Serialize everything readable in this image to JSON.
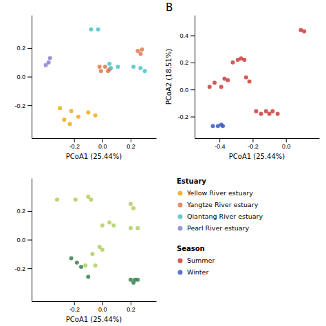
{
  "chart_data": [
    {
      "type": "scatter",
      "x_label": "PCoA1 (25.44%)",
      "annotations": [
        "Estuary"
      ],
      "xlim": [
        -0.5,
        0.38
      ],
      "ylim": [
        -0.43,
        0.43
      ],
      "xticks": [
        -0.2,
        {
          "value": 0.0,
          "label": "0.0"
        },
        0.2
      ],
      "yticks": [
        -0.2,
        {
          "value": 0.0,
          "label": "0.0"
        },
        0.2
      ],
      "series": [
        {
          "name": "Yellow River estuary",
          "color": "#F0A500",
          "x": [
            -0.3,
            -0.22,
            -0.27,
            -0.17,
            -0.23,
            -0.1,
            -0.05
          ],
          "values": [
            -0.22,
            -0.24,
            -0.3,
            -0.28,
            -0.33,
            -0.25,
            -0.27
          ]
        },
        {
          "name": "Yangtze River estuary",
          "color": "#E07040",
          "x": [
            -0.02,
            0.02,
            0.05,
            -0.01,
            0.04,
            0.25,
            0.27,
            0.28
          ],
          "values": [
            0.07,
            0.07,
            0.05,
            0.04,
            0.04,
            0.18,
            0.16,
            0.19
          ]
        },
        {
          "name": "Qiantang River estuary",
          "color": "#40C0C0",
          "x": [
            -0.08,
            -0.03,
            0.05,
            0.06,
            0.11,
            0.22,
            0.27,
            0.3
          ],
          "values": [
            0.33,
            0.33,
            0.09,
            0.06,
            0.07,
            0.07,
            0.06,
            0.04
          ]
        },
        {
          "name": "Pearl River estuary",
          "color": "#8878C8",
          "x": [
            -0.38,
            -0.4,
            -0.37
          ],
          "values": [
            0.1,
            0.08,
            0.13
          ]
        }
      ]
    },
    {
      "type": "scatter",
      "title": "B",
      "x_label": "PCoA1 (25.44%)",
      "y_label": "PCoA2 (18.51%)",
      "annotations": [
        "Season"
      ],
      "xlim": [
        -0.55,
        0.2
      ],
      "ylim": [
        -0.36,
        0.55
      ],
      "xticks": [
        -0.4,
        -0.2,
        {
          "value": 0.0,
          "label": "0.0"
        }
      ],
      "yticks": [
        -0.2,
        {
          "value": 0.0,
          "label": "0.0"
        },
        0.2,
        0.4
      ],
      "series": [
        {
          "name": "Summer",
          "color": "#CC3030",
          "x": [
            -0.46,
            -0.43,
            -0.39,
            -0.37,
            -0.35,
            -0.32,
            -0.29,
            -0.27,
            -0.25,
            -0.24,
            -0.22,
            -0.18,
            -0.15,
            -0.12,
            -0.1,
            -0.08,
            -0.05,
            0.09,
            0.11
          ],
          "values": [
            0.02,
            0.05,
            0.02,
            0.08,
            0.07,
            0.2,
            0.22,
            0.23,
            0.22,
            0.09,
            0.06,
            -0.16,
            -0.18,
            -0.16,
            -0.18,
            -0.16,
            -0.18,
            0.44,
            0.43
          ]
        },
        {
          "name": "Winter",
          "color": "#3050C0",
          "x": [
            -0.44,
            -0.41,
            -0.39,
            -0.38
          ],
          "values": [
            -0.27,
            -0.27,
            -0.26,
            -0.27
          ]
        }
      ]
    },
    {
      "type": "scatter",
      "x_label": "PCoA1 (25.44%)",
      "xlim": [
        -0.5,
        0.38
      ],
      "ylim": [
        -0.43,
        0.43
      ],
      "xticks": [
        -0.2,
        {
          "value": 0.0,
          "label": "0.0"
        },
        0.2
      ],
      "yticks": [
        -0.2,
        {
          "value": 0.0,
          "label": "0.0"
        },
        0.2
      ],
      "series": [
        {
          "color": "#AACC55",
          "x": [
            -0.32,
            -0.19,
            -0.1,
            -0.08,
            0.0,
            0.05,
            0.08,
            0.2,
            0.22,
            0.2,
            0.25,
            -0.02,
            0.0,
            -0.07,
            -0.12,
            -0.05
          ],
          "values": [
            0.28,
            0.28,
            0.3,
            0.28,
            0.1,
            0.12,
            0.1,
            0.25,
            0.22,
            0.08,
            0.08,
            -0.05,
            -0.07,
            -0.1,
            -0.18,
            -0.18
          ]
        },
        {
          "color": "#2A7A45",
          "x": [
            -0.22,
            -0.18,
            -0.15,
            -0.1,
            0.2,
            0.22,
            0.23,
            0.25
          ],
          "values": [
            -0.13,
            -0.16,
            -0.19,
            -0.26,
            -0.28,
            -0.3,
            -0.28,
            -0.28
          ]
        }
      ]
    }
  ]
}
